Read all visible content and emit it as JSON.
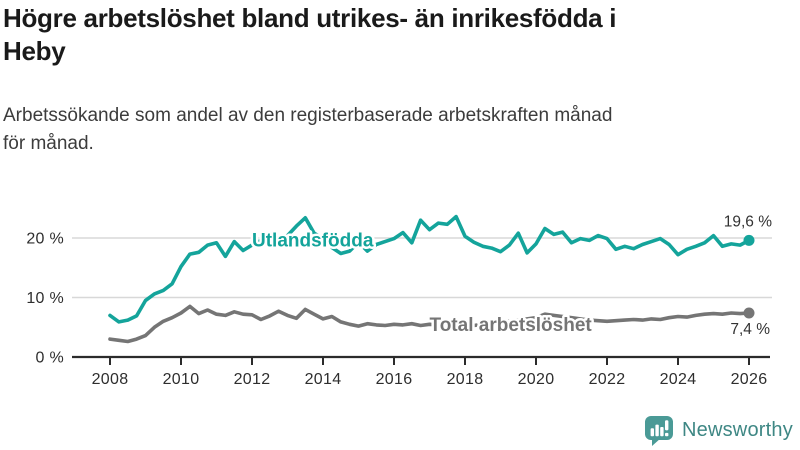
{
  "header": {
    "title_line1": "Högre arbetslöshet bland utrikes- än inrikesfödda i",
    "title_line2": "Heby",
    "subtitle_line1": "Arbetssökande som andel av den registerbaserade arbetskraften månad",
    "subtitle_line2": "för månad."
  },
  "chart_data": {
    "type": "line",
    "title": "Högre arbetslöshet bland utrikes- än inrikesfödda i Heby",
    "subtitle": "Arbetssökande som andel av den registerbaserade arbetskraften månad för månad.",
    "unit": "percent",
    "grid": "horizontal",
    "legend": "inline-labels",
    "x_start_year": 2008,
    "x_step_years": 0.25,
    "x_end_year": 2026,
    "x_tick_labels": [
      "2008",
      "2010",
      "2012",
      "2014",
      "2016",
      "2018",
      "2020",
      "2022",
      "2024",
      "2026"
    ],
    "y_ticks": [
      {
        "value": 0,
        "label": "0 %"
      },
      {
        "value": 10,
        "label": "10 %"
      },
      {
        "value": 20,
        "label": "20 %"
      }
    ],
    "ylim": [
      0,
      25
    ],
    "series": [
      {
        "name": "Utlandsfödda",
        "color": "#14a49b",
        "end_value": 19.6,
        "end_value_label": "19,6 %",
        "label_anchor": {
          "year": 2012.0,
          "value": 19.7
        },
        "values": [
          7.0,
          5.9,
          6.2,
          6.9,
          9.5,
          10.6,
          11.2,
          12.3,
          15.2,
          17.3,
          17.6,
          18.8,
          19.2,
          16.9,
          19.4,
          17.9,
          18.8,
          19.6,
          19.2,
          19.9,
          20.4,
          22.0,
          23.4,
          20.8,
          19.9,
          18.4,
          17.4,
          17.8,
          19.3,
          17.8,
          18.9,
          19.4,
          19.9,
          20.9,
          19.2,
          23.0,
          21.4,
          22.5,
          22.3,
          23.6,
          20.3,
          19.3,
          18.6,
          18.3,
          17.7,
          18.8,
          20.8,
          17.5,
          19.0,
          21.6,
          20.6,
          21.0,
          19.2,
          19.9,
          19.6,
          20.4,
          19.9,
          18.1,
          18.6,
          18.2,
          18.9,
          19.4,
          19.9,
          18.9,
          17.2,
          18.1,
          18.6,
          19.2,
          20.4,
          18.6,
          19.0,
          18.8,
          19.6
        ]
      },
      {
        "name": "Total arbetslöshet",
        "color": "#757575",
        "end_value": 7.4,
        "end_value_label": "7,4 %",
        "label_anchor": {
          "year": 2017.0,
          "value": 5.5
        },
        "values": [
          3.0,
          2.8,
          2.6,
          3.0,
          3.6,
          5.0,
          6.0,
          6.6,
          7.4,
          8.5,
          7.3,
          7.9,
          7.2,
          7.0,
          7.6,
          7.2,
          7.1,
          6.3,
          6.9,
          7.7,
          7.0,
          6.5,
          8.0,
          7.2,
          6.4,
          6.8,
          5.9,
          5.5,
          5.2,
          5.6,
          5.4,
          5.3,
          5.5,
          5.4,
          5.6,
          5.3,
          5.5,
          5.4,
          5.3,
          5.5,
          5.4,
          5.3,
          5.5,
          5.6,
          5.8,
          6.0,
          6.2,
          6.4,
          6.6,
          7.2,
          7.0,
          6.8,
          6.6,
          6.4,
          6.2,
          6.1,
          6.0,
          6.1,
          6.2,
          6.3,
          6.2,
          6.4,
          6.3,
          6.6,
          6.8,
          6.7,
          7.0,
          7.2,
          7.3,
          7.2,
          7.4,
          7.3,
          7.4
        ]
      }
    ]
  },
  "footer": {
    "brand_name": "Newsworthy"
  },
  "colors": {
    "accent_teal": "#14a49b",
    "line_gray": "#757575",
    "grid_gray": "#d8d8d8",
    "axis_dark": "#2b2b2b",
    "logo_teal": "#4a9a96",
    "logo_text_teal": "#3e8784"
  }
}
